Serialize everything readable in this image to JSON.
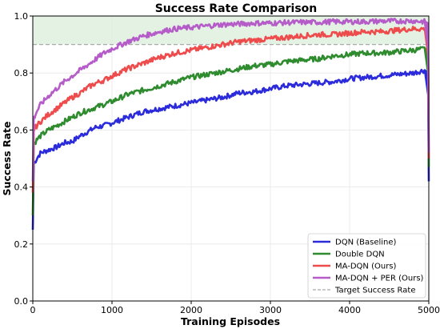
{
  "chart_data": {
    "type": "line",
    "title": "Success Rate Comparison",
    "xlabel": "Training Episodes",
    "ylabel": "Success Rate",
    "xlim": [
      0,
      5000
    ],
    "ylim": [
      0.0,
      1.0
    ],
    "xticks": [
      0,
      1000,
      2000,
      3000,
      4000,
      5000
    ],
    "yticks": [
      0.0,
      0.2,
      0.4,
      0.6,
      0.8,
      1.0
    ],
    "grid": true,
    "legend_position": "bottom-right",
    "target_success_rate": 0.9,
    "target_label": "Target Success Rate",
    "target_color": "#aaaaaa",
    "target_fill_color": "#d9ecd9",
    "series": [
      {
        "name": "DQN (Baseline)",
        "color": "#2b2bdc",
        "x": [
          0,
          10,
          50,
          100,
          200,
          300,
          400,
          500,
          600,
          700,
          800,
          900,
          1000,
          1200,
          1400,
          1600,
          1800,
          2000,
          2200,
          2400,
          2600,
          2800,
          3000,
          3200,
          3400,
          3600,
          3800,
          4000,
          4200,
          4400,
          4600,
          4800,
          4950,
          4990,
          5000
        ],
        "y": [
          0.25,
          0.48,
          0.5,
          0.52,
          0.53,
          0.54,
          0.555,
          0.56,
          0.58,
          0.595,
          0.61,
          0.615,
          0.625,
          0.645,
          0.665,
          0.675,
          0.685,
          0.695,
          0.705,
          0.715,
          0.73,
          0.735,
          0.745,
          0.755,
          0.76,
          0.765,
          0.77,
          0.78,
          0.785,
          0.79,
          0.795,
          0.8,
          0.81,
          0.8,
          0.42
        ]
      },
      {
        "name": "Double DQN",
        "color": "#2e8b2e",
        "x": [
          0,
          10,
          50,
          100,
          200,
          300,
          400,
          500,
          600,
          700,
          800,
          900,
          1000,
          1200,
          1400,
          1600,
          1800,
          2000,
          2200,
          2400,
          2600,
          2800,
          3000,
          3200,
          3400,
          3600,
          3800,
          4000,
          4200,
          4400,
          4600,
          4800,
          4950,
          4990,
          5000
        ],
        "y": [
          0.3,
          0.55,
          0.565,
          0.58,
          0.6,
          0.615,
          0.63,
          0.645,
          0.66,
          0.67,
          0.68,
          0.69,
          0.7,
          0.725,
          0.74,
          0.755,
          0.77,
          0.785,
          0.795,
          0.805,
          0.815,
          0.825,
          0.83,
          0.84,
          0.845,
          0.85,
          0.86,
          0.865,
          0.87,
          0.87,
          0.875,
          0.88,
          0.885,
          0.88,
          0.47
        ]
      },
      {
        "name": "MA-DQN (Ours)",
        "color": "#ee4c4c",
        "x": [
          0,
          10,
          50,
          100,
          200,
          300,
          400,
          500,
          600,
          700,
          800,
          900,
          1000,
          1200,
          1400,
          1600,
          1800,
          2000,
          2200,
          2400,
          2600,
          2800,
          3000,
          3200,
          3400,
          3600,
          3800,
          4000,
          4200,
          4400,
          4600,
          4800,
          4950,
          4990,
          5000
        ],
        "y": [
          0.38,
          0.6,
          0.615,
          0.63,
          0.655,
          0.675,
          0.695,
          0.715,
          0.73,
          0.75,
          0.765,
          0.775,
          0.79,
          0.815,
          0.835,
          0.855,
          0.87,
          0.88,
          0.89,
          0.9,
          0.91,
          0.915,
          0.92,
          0.925,
          0.93,
          0.935,
          0.935,
          0.94,
          0.945,
          0.945,
          0.95,
          0.955,
          0.955,
          0.95,
          0.5
        ]
      },
      {
        "name": "MA-DQN + PER (Ours)",
        "color": "#b55cc9",
        "x": [
          0,
          10,
          50,
          100,
          200,
          300,
          400,
          500,
          600,
          700,
          800,
          900,
          1000,
          1200,
          1400,
          1600,
          1800,
          2000,
          2200,
          2400,
          2600,
          2800,
          3000,
          3200,
          3400,
          3600,
          3800,
          4000,
          4200,
          4400,
          4600,
          4800,
          4950,
          4990,
          5000
        ],
        "y": [
          0.42,
          0.64,
          0.665,
          0.69,
          0.72,
          0.745,
          0.77,
          0.79,
          0.81,
          0.83,
          0.85,
          0.87,
          0.885,
          0.91,
          0.93,
          0.945,
          0.955,
          0.96,
          0.965,
          0.97,
          0.972,
          0.975,
          0.975,
          0.977,
          0.978,
          0.978,
          0.98,
          0.98,
          0.98,
          0.982,
          0.982,
          0.983,
          0.98,
          0.975,
          0.52
        ]
      }
    ]
  }
}
